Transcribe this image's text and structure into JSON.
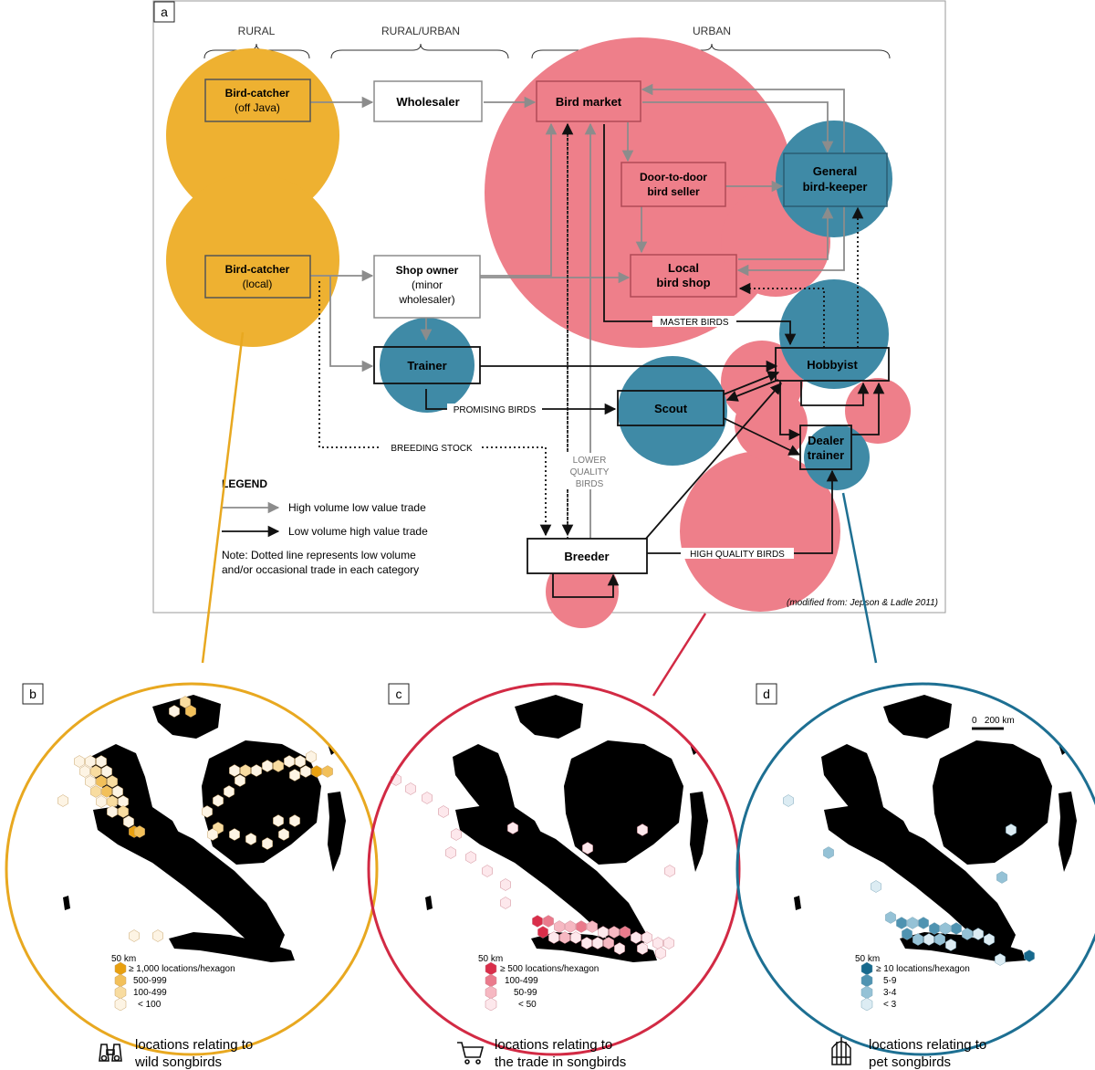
{
  "panels": {
    "a": "a",
    "b": "b",
    "c": "c",
    "d": "d"
  },
  "headers": {
    "rural": "RURAL",
    "rural_urban": "RURAL/URBAN",
    "urban": "URBAN"
  },
  "nodes": {
    "catcher_offjava": {
      "line1": "Bird-catcher",
      "line2": "(off Java)"
    },
    "catcher_local": {
      "line1": "Bird-catcher",
      "line2": "(local)"
    },
    "wholesaler": {
      "line1": "Wholesaler"
    },
    "shop_owner": {
      "line1": "Shop owner",
      "line2": "(minor",
      "line3": "wholesaler)"
    },
    "trainer": {
      "line1": "Trainer"
    },
    "bird_market": {
      "line1": "Bird market"
    },
    "door_to_door": {
      "line1": "Door-to-door",
      "line2": "bird seller"
    },
    "local_shop": {
      "line1": "Local",
      "line2": "bird shop"
    },
    "general_keeper": {
      "line1": "General",
      "line2": "bird-keeper"
    },
    "hobbyist": {
      "line1": "Hobbyist"
    },
    "scout": {
      "line1": "Scout"
    },
    "dealer_trainer": {
      "line1": "Dealer",
      "line2": "trainer"
    },
    "breeder": {
      "line1": "Breeder"
    }
  },
  "edge_labels": {
    "master_birds": "MASTER BIRDS",
    "promising_birds": "PROMISING BIRDS",
    "breeding_stock": "BREEDING STOCK",
    "lower_quality": [
      "LOWER",
      "QUALITY",
      "BIRDS"
    ],
    "high_quality": "HIGH QUALITY BIRDS"
  },
  "legend": {
    "title": "LEGEND",
    "high_volume": "High volume low value trade",
    "low_volume": "Low volume high value trade",
    "note_line1": "Note: Dotted line represents low volume",
    "note_line2": "and/or occasional trade in each category"
  },
  "source_note": "(modified from: Jepson & Ladle 2011)",
  "colors": {
    "rural": "#eeb131",
    "urban": "#ee7f8a",
    "pet": "#3f8aa6",
    "ring_b": "#e8a820",
    "ring_c": "#d22a44",
    "ring_d": "#1d6f92",
    "gray_arrow": "#8c8c8c"
  },
  "maps": {
    "b": {
      "scale": "50 km",
      "legend": [
        "≥ 1,000 locations/hexagon",
        "500-999",
        "100-499",
        "< 100"
      ],
      "legend_colors": [
        "#e8a010",
        "#f2c05a",
        "#f8dca0",
        "#fdf4e4"
      ],
      "caption_line1": "locations relating to",
      "caption_line2": "wild songbirds",
      "icon": "binoculars-icon"
    },
    "c": {
      "scale": "50 km",
      "legend": [
        "≥ 500 locations/hexagon",
        "100-499",
        "50-99",
        "< 50"
      ],
      "legend_colors": [
        "#d92e4a",
        "#ea7a8c",
        "#f6b8c2",
        "#fde8ec"
      ],
      "caption_line1": "locations relating to",
      "caption_line2": "the trade in songbirds",
      "icon": "shopping-cart-icon"
    },
    "d": {
      "scale": "50 km",
      "scale_bar": "0   200 km",
      "legend": [
        "≥ 10 locations/hexagon",
        "5-9",
        "3-4",
        "< 3"
      ],
      "legend_colors": [
        "#17698d",
        "#4f93b1",
        "#95c2d6",
        "#dcecf3"
      ],
      "caption_line1": "locations relating to",
      "caption_line2": "pet songbirds",
      "icon": "birdcage-icon"
    }
  }
}
